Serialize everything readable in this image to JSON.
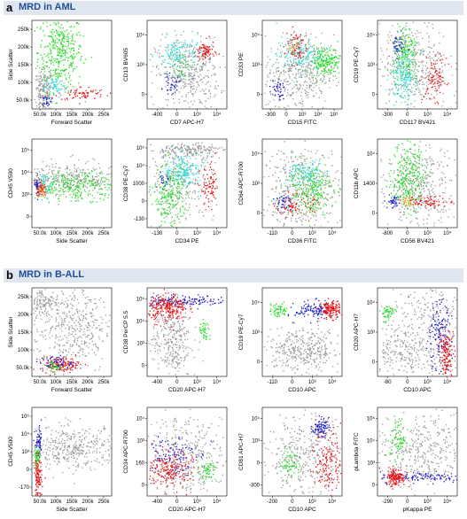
{
  "sections": [
    {
      "letter": "a",
      "title": "MRD in AML"
    },
    {
      "letter": "b",
      "title": "MRD in B-ALL"
    }
  ],
  "colors": {
    "banner": "#dfe6f0",
    "title": "#1f4e9b",
    "gray": "#9a9a9a",
    "green": "#22dd22",
    "cyan": "#33dddd",
    "red": "#e81818",
    "blue": "#2020cc",
    "orange": "#f0a020"
  },
  "chart_data": [
    {
      "type": "scatter",
      "section": "a",
      "xlabel": "Forward Scatter",
      "ylabel": "Side Scatter",
      "xticks": [
        "50.0k",
        "100k",
        "150k",
        "200k",
        "250k"
      ],
      "yticks": [
        "50.0k",
        "100k",
        "150k",
        "200k",
        "250k"
      ],
      "clouds": [
        {
          "color": "green",
          "cx": 0.35,
          "cy": 0.65,
          "sx": 0.14,
          "sy": 0.22,
          "n": 380
        },
        {
          "color": "gray",
          "cx": 0.14,
          "cy": 0.2,
          "sx": 0.06,
          "sy": 0.12,
          "n": 200
        },
        {
          "color": "cyan",
          "cx": 0.28,
          "cy": 0.25,
          "sx": 0.07,
          "sy": 0.06,
          "n": 60
        },
        {
          "color": "red",
          "cx": 0.62,
          "cy": 0.18,
          "sx": 0.15,
          "sy": 0.04,
          "n": 70
        },
        {
          "color": "blue",
          "cx": 0.18,
          "cy": 0.1,
          "sx": 0.03,
          "sy": 0.03,
          "n": 25
        }
      ]
    },
    {
      "type": "scatter",
      "section": "a",
      "xlabel": "CD7 APC-H7",
      "ylabel": "CD13 BV605",
      "xticks": [
        "-400",
        "0",
        "10³",
        "10⁴"
      ],
      "yticks": [
        "0",
        "10³",
        "10⁴"
      ],
      "clouds": [
        {
          "color": "gray",
          "cx": 0.5,
          "cy": 0.4,
          "sx": 0.2,
          "sy": 0.2,
          "n": 400
        },
        {
          "color": "cyan",
          "cx": 0.4,
          "cy": 0.62,
          "sx": 0.14,
          "sy": 0.1,
          "n": 150
        },
        {
          "color": "red",
          "cx": 0.72,
          "cy": 0.65,
          "sx": 0.06,
          "sy": 0.06,
          "n": 80
        },
        {
          "color": "blue",
          "cx": 0.3,
          "cy": 0.28,
          "sx": 0.05,
          "sy": 0.05,
          "n": 40
        },
        {
          "color": "green",
          "cx": 0.42,
          "cy": 0.5,
          "sx": 0.08,
          "sy": 0.08,
          "n": 30
        }
      ]
    },
    {
      "type": "scatter",
      "section": "a",
      "xlabel": "CD15 FITC",
      "ylabel": "CD33 PE",
      "xticks": [
        "-300",
        "0",
        "10³",
        "10⁴",
        "10⁵"
      ],
      "yticks": [
        "0",
        "10³",
        "10⁴"
      ],
      "clouds": [
        {
          "color": "gray",
          "cx": 0.45,
          "cy": 0.4,
          "sx": 0.22,
          "sy": 0.22,
          "n": 400
        },
        {
          "color": "green",
          "cx": 0.78,
          "cy": 0.55,
          "sx": 0.1,
          "sy": 0.08,
          "n": 200
        },
        {
          "color": "cyan",
          "cx": 0.45,
          "cy": 0.62,
          "sx": 0.14,
          "sy": 0.1,
          "n": 160
        },
        {
          "color": "red",
          "cx": 0.42,
          "cy": 0.72,
          "sx": 0.07,
          "sy": 0.1,
          "n": 70
        },
        {
          "color": "blue",
          "cx": 0.18,
          "cy": 0.22,
          "sx": 0.05,
          "sy": 0.06,
          "n": 40
        },
        {
          "color": "orange",
          "cx": 0.38,
          "cy": 0.68,
          "sx": 0.04,
          "sy": 0.04,
          "n": 20
        }
      ]
    },
    {
      "type": "scatter",
      "section": "a",
      "xlabel": "CD117 BV421",
      "ylabel": "CD19 PE-Cy7",
      "xticks": [
        "-300",
        "0",
        "10³",
        "10⁴"
      ],
      "yticks": [
        "0",
        "10³",
        "10⁴"
      ],
      "clouds": [
        {
          "color": "gray",
          "cx": 0.45,
          "cy": 0.5,
          "sx": 0.22,
          "sy": 0.25,
          "n": 400
        },
        {
          "color": "green",
          "cx": 0.35,
          "cy": 0.6,
          "sx": 0.08,
          "sy": 0.18,
          "n": 180
        },
        {
          "color": "cyan",
          "cx": 0.32,
          "cy": 0.38,
          "sx": 0.08,
          "sy": 0.14,
          "n": 160
        },
        {
          "color": "red",
          "cx": 0.72,
          "cy": 0.35,
          "sx": 0.07,
          "sy": 0.12,
          "n": 90
        },
        {
          "color": "blue",
          "cx": 0.25,
          "cy": 0.72,
          "sx": 0.05,
          "sy": 0.06,
          "n": 40
        }
      ]
    },
    {
      "type": "scatter",
      "section": "a",
      "xlabel": "Side Scatter",
      "ylabel": "CD45 V500",
      "xticks": [
        "50.0k",
        "100k",
        "150k",
        "200k",
        "250k"
      ],
      "yticks": [
        "0",
        "10³",
        "10⁴",
        "10⁵"
      ],
      "clouds": [
        {
          "color": "gray",
          "cx": 0.45,
          "cy": 0.55,
          "sx": 0.3,
          "sy": 0.1,
          "n": 300
        },
        {
          "color": "green",
          "cx": 0.58,
          "cy": 0.48,
          "sx": 0.28,
          "sy": 0.08,
          "n": 260
        },
        {
          "color": "cyan",
          "cx": 0.15,
          "cy": 0.48,
          "sx": 0.05,
          "sy": 0.06,
          "n": 60
        },
        {
          "color": "red",
          "cx": 0.1,
          "cy": 0.45,
          "sx": 0.03,
          "sy": 0.05,
          "n": 60
        },
        {
          "color": "blue",
          "cx": 0.06,
          "cy": 0.5,
          "sx": 0.02,
          "sy": 0.06,
          "n": 30
        },
        {
          "color": "orange",
          "cx": 0.12,
          "cy": 0.4,
          "sx": 0.03,
          "sy": 0.04,
          "n": 25
        }
      ]
    },
    {
      "type": "scatter",
      "section": "a",
      "xlabel": "CD34 PE",
      "ylabel": "CD38 PE-Cy7",
      "xticks": [
        "-130",
        "0",
        "10³",
        "10⁴"
      ],
      "yticks": [
        "-130",
        "0",
        "1000",
        "10⁴",
        "10⁵"
      ],
      "clouds": [
        {
          "color": "gray",
          "cx": 0.5,
          "cy": 0.88,
          "sx": 0.25,
          "sy": 0.04,
          "n": 200
        },
        {
          "color": "gray",
          "cx": 0.4,
          "cy": 0.5,
          "sx": 0.22,
          "sy": 0.2,
          "n": 250
        },
        {
          "color": "cyan",
          "cx": 0.45,
          "cy": 0.65,
          "sx": 0.12,
          "sy": 0.1,
          "n": 180
        },
        {
          "color": "green",
          "cx": 0.28,
          "cy": 0.35,
          "sx": 0.1,
          "sy": 0.18,
          "n": 220
        },
        {
          "color": "red",
          "cx": 0.78,
          "cy": 0.45,
          "sx": 0.06,
          "sy": 0.12,
          "n": 80
        },
        {
          "color": "blue",
          "cx": 0.2,
          "cy": 0.55,
          "sx": 0.04,
          "sy": 0.05,
          "n": 20
        }
      ]
    },
    {
      "type": "scatter",
      "section": "a",
      "xlabel": "CD36 FITC",
      "ylabel": "CD64 APC-R700",
      "xticks": [
        "-110",
        "0",
        "10³",
        "10⁴"
      ],
      "yticks": [
        "0",
        "10³",
        "10⁴"
      ],
      "clouds": [
        {
          "color": "gray",
          "cx": 0.5,
          "cy": 0.45,
          "sx": 0.25,
          "sy": 0.25,
          "n": 400
        },
        {
          "color": "green",
          "cx": 0.58,
          "cy": 0.45,
          "sx": 0.15,
          "sy": 0.15,
          "n": 260
        },
        {
          "color": "cyan",
          "cx": 0.55,
          "cy": 0.62,
          "sx": 0.12,
          "sy": 0.08,
          "n": 100
        },
        {
          "color": "red",
          "cx": 0.4,
          "cy": 0.25,
          "sx": 0.12,
          "sy": 0.06,
          "n": 80
        },
        {
          "color": "blue",
          "cx": 0.25,
          "cy": 0.3,
          "sx": 0.05,
          "sy": 0.05,
          "n": 40
        }
      ]
    },
    {
      "type": "scatter",
      "section": "a",
      "xlabel": "CD56 BV421",
      "ylabel": "CD11b APC",
      "xticks": [
        "-800",
        "0",
        "10³",
        "10⁴"
      ],
      "yticks": [
        "0",
        "1400",
        "10⁴"
      ],
      "clouds": [
        {
          "color": "gray",
          "cx": 0.5,
          "cy": 0.45,
          "sx": 0.25,
          "sy": 0.25,
          "n": 380
        },
        {
          "color": "green",
          "cx": 0.38,
          "cy": 0.6,
          "sx": 0.1,
          "sy": 0.2,
          "n": 260
        },
        {
          "color": "red",
          "cx": 0.65,
          "cy": 0.3,
          "sx": 0.15,
          "sy": 0.03,
          "n": 80
        },
        {
          "color": "blue",
          "cx": 0.2,
          "cy": 0.3,
          "sx": 0.04,
          "sy": 0.04,
          "n": 40
        },
        {
          "color": "orange",
          "cx": 0.35,
          "cy": 0.3,
          "sx": 0.04,
          "sy": 0.03,
          "n": 25
        }
      ]
    },
    {
      "type": "scatter",
      "section": "b",
      "xlabel": "Forward Scatter",
      "ylabel": "Side Scatter",
      "xticks": [
        "50.0k",
        "100k",
        "150k",
        "200k",
        "250k"
      ],
      "yticks": [
        "50.0k",
        "100k",
        "150k",
        "200k",
        "250k"
      ],
      "clouds": [
        {
          "color": "gray",
          "cx": 0.5,
          "cy": 0.55,
          "sx": 0.25,
          "sy": 0.25,
          "n": 450
        },
        {
          "color": "gray",
          "cx": 0.15,
          "cy": 0.85,
          "sx": 0.1,
          "sy": 0.08,
          "n": 120
        },
        {
          "color": "red",
          "cx": 0.35,
          "cy": 0.14,
          "sx": 0.12,
          "sy": 0.04,
          "n": 150
        },
        {
          "color": "blue",
          "cx": 0.3,
          "cy": 0.16,
          "sx": 0.1,
          "sy": 0.04,
          "n": 60
        },
        {
          "color": "green",
          "cx": 0.25,
          "cy": 0.12,
          "sx": 0.05,
          "sy": 0.03,
          "n": 30
        }
      ]
    },
    {
      "type": "scatter",
      "section": "b",
      "xlabel": "CD20 APC-H7",
      "ylabel": "CD38 PerCP 5.5",
      "xticks": [
        "-400",
        "0",
        "10³",
        "10⁴"
      ],
      "yticks": [
        "0",
        "10³",
        "10⁴",
        "10⁵"
      ],
      "clouds": [
        {
          "color": "gray",
          "cx": 0.3,
          "cy": 0.4,
          "sx": 0.12,
          "sy": 0.22,
          "n": 300
        },
        {
          "color": "blue",
          "cx": 0.45,
          "cy": 0.86,
          "sx": 0.28,
          "sy": 0.03,
          "n": 150
        },
        {
          "color": "red",
          "cx": 0.25,
          "cy": 0.78,
          "sx": 0.12,
          "sy": 0.08,
          "n": 250
        },
        {
          "color": "green",
          "cx": 0.72,
          "cy": 0.5,
          "sx": 0.04,
          "sy": 0.06,
          "n": 40
        }
      ]
    },
    {
      "type": "scatter",
      "section": "b",
      "xlabel": "CD10 APC",
      "ylabel": "CD19 PE-Cy7",
      "xticks": [
        "-110",
        "0",
        "10³",
        "10⁴"
      ],
      "yticks": [
        "0",
        "10³",
        "10⁴"
      ],
      "clouds": [
        {
          "color": "gray",
          "cx": 0.5,
          "cy": 0.3,
          "sx": 0.25,
          "sy": 0.12,
          "n": 380
        },
        {
          "color": "green",
          "cx": 0.2,
          "cy": 0.75,
          "sx": 0.06,
          "sy": 0.04,
          "n": 60
        },
        {
          "color": "blue",
          "cx": 0.65,
          "cy": 0.75,
          "sx": 0.12,
          "sy": 0.05,
          "n": 120
        },
        {
          "color": "red",
          "cx": 0.85,
          "cy": 0.76,
          "sx": 0.06,
          "sy": 0.05,
          "n": 150
        }
      ]
    },
    {
      "type": "scatter",
      "section": "b",
      "xlabel": "CD10 APC",
      "ylabel": "CD20 APC-H7",
      "xticks": [
        "-80",
        "0",
        "10³",
        "10⁴"
      ],
      "yticks": [
        "0",
        "10³",
        "10⁴"
      ],
      "clouds": [
        {
          "color": "gray",
          "cx": 0.4,
          "cy": 0.3,
          "sx": 0.25,
          "sy": 0.14,
          "n": 300
        },
        {
          "color": "gray",
          "cx": 0.65,
          "cy": 0.75,
          "sx": 0.25,
          "sy": 0.15,
          "n": 150
        },
        {
          "color": "green",
          "cx": 0.12,
          "cy": 0.72,
          "sx": 0.05,
          "sy": 0.05,
          "n": 50
        },
        {
          "color": "blue",
          "cx": 0.76,
          "cy": 0.45,
          "sx": 0.08,
          "sy": 0.2,
          "n": 150
        },
        {
          "color": "red",
          "cx": 0.86,
          "cy": 0.25,
          "sx": 0.05,
          "sy": 0.15,
          "n": 150
        }
      ]
    },
    {
      "type": "scatter",
      "section": "b",
      "xlabel": "Side Scatter",
      "ylabel": "CD45 V500",
      "xticks": [
        "50.0k",
        "100k",
        "150k",
        "200k",
        "250k"
      ],
      "yticks": [
        "-170",
        "0",
        "10³",
        "10⁴",
        "10⁵"
      ],
      "clouds": [
        {
          "color": "gray",
          "cx": 0.5,
          "cy": 0.55,
          "sx": 0.3,
          "sy": 0.12,
          "n": 400
        },
        {
          "color": "blue",
          "cx": 0.08,
          "cy": 0.6,
          "sx": 0.025,
          "sy": 0.08,
          "n": 60
        },
        {
          "color": "green",
          "cx": 0.06,
          "cy": 0.45,
          "sx": 0.02,
          "sy": 0.06,
          "n": 60
        },
        {
          "color": "red",
          "cx": 0.07,
          "cy": 0.2,
          "sx": 0.025,
          "sy": 0.12,
          "n": 120
        }
      ]
    },
    {
      "type": "scatter",
      "section": "b",
      "xlabel": "CD20 APC-H7",
      "ylabel": "CD34 APC-R700",
      "xticks": [
        "-400",
        "0",
        "10³",
        "10⁴"
      ],
      "yticks": [
        "0",
        "160",
        "10³",
        "10⁴"
      ],
      "clouds": [
        {
          "color": "gray",
          "cx": 0.5,
          "cy": 0.45,
          "sx": 0.3,
          "sy": 0.25,
          "n": 380
        },
        {
          "color": "blue",
          "cx": 0.3,
          "cy": 0.48,
          "sx": 0.15,
          "sy": 0.12,
          "n": 120
        },
        {
          "color": "red",
          "cx": 0.28,
          "cy": 0.3,
          "sx": 0.14,
          "sy": 0.1,
          "n": 200
        },
        {
          "color": "green",
          "cx": 0.75,
          "cy": 0.3,
          "sx": 0.05,
          "sy": 0.06,
          "n": 50
        }
      ]
    },
    {
      "type": "scatter",
      "section": "b",
      "xlabel": "CD10 APC",
      "ylabel": "CD81 APC-H7",
      "xticks": [
        "-200",
        "0",
        "10³",
        "10⁴"
      ],
      "yticks": [
        "-300",
        "0",
        "10³",
        "10⁴"
      ],
      "clouds": [
        {
          "color": "gray",
          "cx": 0.5,
          "cy": 0.45,
          "sx": 0.28,
          "sy": 0.25,
          "n": 380
        },
        {
          "color": "blue",
          "cx": 0.72,
          "cy": 0.78,
          "sx": 0.05,
          "sy": 0.05,
          "n": 90
        },
        {
          "color": "green",
          "cx": 0.35,
          "cy": 0.38,
          "sx": 0.06,
          "sy": 0.08,
          "n": 60
        },
        {
          "color": "red",
          "cx": 0.82,
          "cy": 0.4,
          "sx": 0.08,
          "sy": 0.18,
          "n": 150
        }
      ]
    },
    {
      "type": "scatter",
      "section": "b",
      "xlabel": "pKappa PE",
      "ylabel": "pLambda FITC",
      "xticks": [
        "-290",
        "0",
        "10³",
        "10⁴"
      ],
      "yticks": [
        "0",
        "10³",
        "10⁴",
        "10⁵"
      ],
      "clouds": [
        {
          "color": "gray",
          "cx": 0.55,
          "cy": 0.5,
          "sx": 0.3,
          "sy": 0.2,
          "n": 380
        },
        {
          "color": "green",
          "cx": 0.25,
          "cy": 0.65,
          "sx": 0.05,
          "sy": 0.12,
          "n": 70
        },
        {
          "color": "blue",
          "cx": 0.6,
          "cy": 0.22,
          "sx": 0.3,
          "sy": 0.03,
          "n": 120
        },
        {
          "color": "red",
          "cx": 0.22,
          "cy": 0.22,
          "sx": 0.06,
          "sy": 0.05,
          "n": 150
        }
      ]
    }
  ]
}
